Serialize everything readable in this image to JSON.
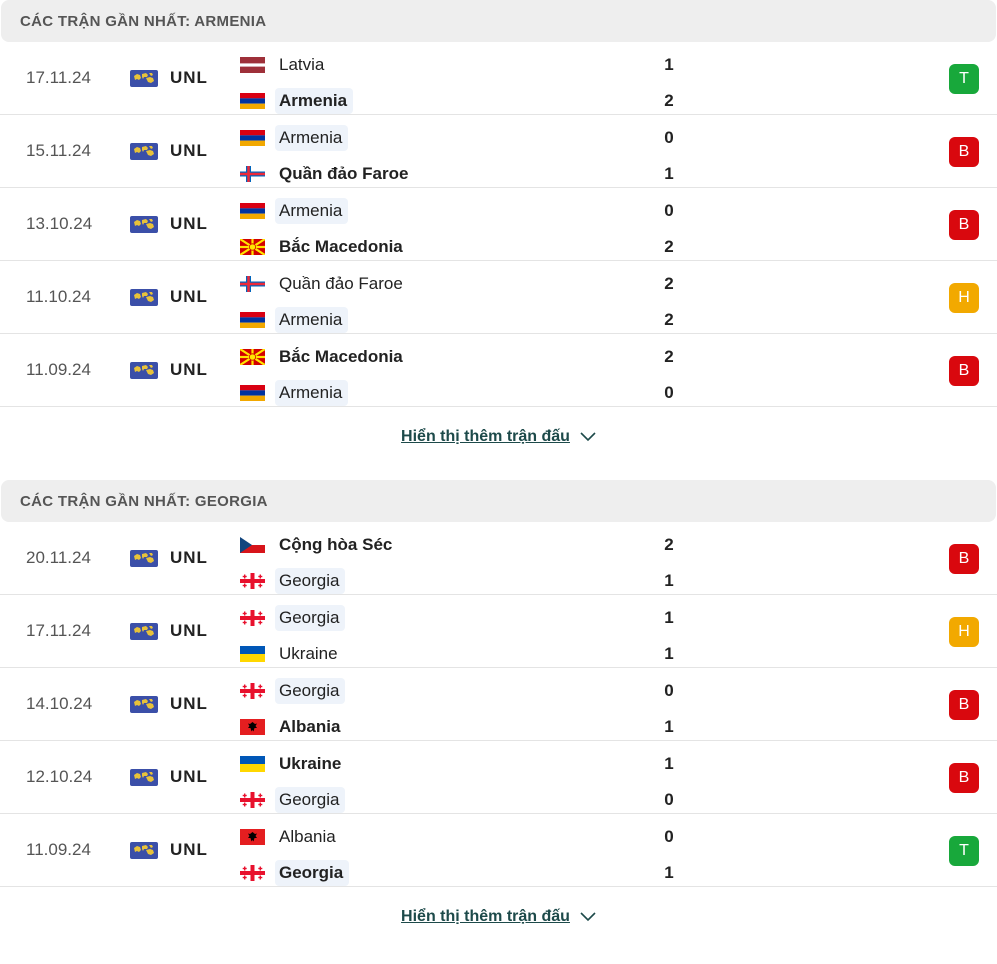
{
  "sections": [
    {
      "title": "CÁC TRẬN GẦN NHẤT: ARMENIA",
      "show_more": "Hiển thị thêm trận đấu",
      "matches": [
        {
          "date": "17.11.24",
          "comp": "UNL",
          "home": "Latvia",
          "home_flag": "latvia",
          "home_hl": false,
          "home_win": false,
          "away": "Armenia",
          "away_flag": "armenia",
          "away_hl": true,
          "away_win": true,
          "home_score": "1",
          "away_score": "2",
          "result": "T"
        },
        {
          "date": "15.11.24",
          "comp": "UNL",
          "home": "Armenia",
          "home_flag": "armenia",
          "home_hl": true,
          "home_win": false,
          "away": "Quần đảo Faroe",
          "away_flag": "faroe",
          "away_hl": false,
          "away_win": true,
          "home_score": "0",
          "away_score": "1",
          "result": "B"
        },
        {
          "date": "13.10.24",
          "comp": "UNL",
          "home": "Armenia",
          "home_flag": "armenia",
          "home_hl": true,
          "home_win": false,
          "away": "Bắc Macedonia",
          "away_flag": "macedonia",
          "away_hl": false,
          "away_win": true,
          "home_score": "0",
          "away_score": "2",
          "result": "B"
        },
        {
          "date": "11.10.24",
          "comp": "UNL",
          "home": "Quần đảo Faroe",
          "home_flag": "faroe",
          "home_hl": false,
          "home_win": false,
          "away": "Armenia",
          "away_flag": "armenia",
          "away_hl": true,
          "away_win": false,
          "home_score": "2",
          "away_score": "2",
          "result": "H"
        },
        {
          "date": "11.09.24",
          "comp": "UNL",
          "home": "Bắc Macedonia",
          "home_flag": "macedonia",
          "home_hl": false,
          "home_win": true,
          "away": "Armenia",
          "away_flag": "armenia",
          "away_hl": true,
          "away_win": false,
          "home_score": "2",
          "away_score": "0",
          "result": "B"
        }
      ]
    },
    {
      "title": "CÁC TRẬN GẦN NHẤT: GEORGIA",
      "show_more": "Hiển thị thêm trận đấu",
      "matches": [
        {
          "date": "20.11.24",
          "comp": "UNL",
          "home": "Cộng hòa Séc",
          "home_flag": "czech",
          "home_hl": false,
          "home_win": true,
          "away": "Georgia",
          "away_flag": "georgia",
          "away_hl": true,
          "away_win": false,
          "home_score": "2",
          "away_score": "1",
          "result": "B"
        },
        {
          "date": "17.11.24",
          "comp": "UNL",
          "home": "Georgia",
          "home_flag": "georgia",
          "home_hl": true,
          "home_win": false,
          "away": "Ukraine",
          "away_flag": "ukraine",
          "away_hl": false,
          "away_win": false,
          "home_score": "1",
          "away_score": "1",
          "result": "H"
        },
        {
          "date": "14.10.24",
          "comp": "UNL",
          "home": "Georgia",
          "home_flag": "georgia",
          "home_hl": true,
          "home_win": false,
          "away": "Albania",
          "away_flag": "albania",
          "away_hl": false,
          "away_win": true,
          "home_score": "0",
          "away_score": "1",
          "result": "B"
        },
        {
          "date": "12.10.24",
          "comp": "UNL",
          "home": "Ukraine",
          "home_flag": "ukraine",
          "home_hl": false,
          "home_win": true,
          "away": "Georgia",
          "away_flag": "georgia",
          "away_hl": true,
          "away_win": false,
          "home_score": "1",
          "away_score": "0",
          "result": "B"
        },
        {
          "date": "11.09.24",
          "comp": "UNL",
          "home": "Albania",
          "home_flag": "albania",
          "home_hl": false,
          "home_win": false,
          "away": "Georgia",
          "away_flag": "georgia",
          "away_hl": true,
          "away_win": true,
          "home_score": "0",
          "away_score": "1",
          "result": "T"
        }
      ]
    }
  ],
  "colors": {
    "win": "#18a83b",
    "loss": "#d9080e",
    "draw": "#f2a900",
    "team_highlight": "#eef3fa",
    "header_bg": "#eeeeee"
  },
  "icons": {
    "competition": "unl-world-map-icon",
    "show_more": "chevron-down-icon"
  }
}
